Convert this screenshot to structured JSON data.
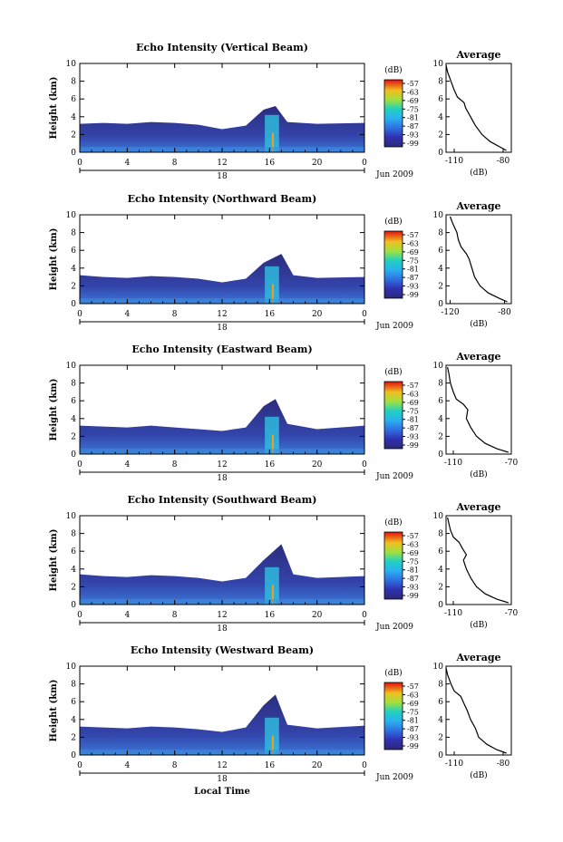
{
  "chart_data": [
    {
      "type": "heatmap",
      "title": "Echo Intensity (Vertical Beam)",
      "ylabel": "Height (km)",
      "xlim": [
        0,
        24
      ],
      "ylim": [
        0,
        10
      ],
      "xticks": [
        "0",
        "4",
        "8",
        "12",
        "16",
        "20",
        "0"
      ],
      "yticks": [
        "0",
        "2",
        "4",
        "6",
        "8",
        "10"
      ],
      "date_day": "18",
      "date_label": "Jun 2009",
      "colorbar": {
        "unit": "(dB)",
        "ticks": [
          "-57",
          "-63",
          "-69",
          "-75",
          "-81",
          "-87",
          "-93",
          "-99"
        ]
      },
      "echo_top_profile_km": [
        [
          0,
          3.2
        ],
        [
          2,
          3.3
        ],
        [
          4,
          3.2
        ],
        [
          6,
          3.4
        ],
        [
          8,
          3.3
        ],
        [
          10,
          3.1
        ],
        [
          12,
          2.6
        ],
        [
          14,
          3.0
        ],
        [
          15.5,
          4.8
        ],
        [
          16.5,
          5.2
        ],
        [
          17.5,
          3.4
        ],
        [
          20,
          3.2
        ],
        [
          24,
          3.3
        ]
      ],
      "average": {
        "title": "Average",
        "xlabel": "(dB)",
        "xticks": [
          "-110",
          "-80"
        ],
        "xlim": [
          -115,
          -75
        ],
        "yticks": [
          "0",
          "2",
          "4",
          "6",
          "8",
          "10"
        ],
        "profile": [
          [
            -78,
            0.2
          ],
          [
            -82,
            0.6
          ],
          [
            -88,
            1.2
          ],
          [
            -93,
            2
          ],
          [
            -97,
            3
          ],
          [
            -100,
            4
          ],
          [
            -103,
            5
          ],
          [
            -104,
            5.6
          ],
          [
            -108,
            6.2
          ],
          [
            -110,
            7
          ],
          [
            -112,
            8
          ],
          [
            -114,
            9
          ],
          [
            -115,
            9.8
          ]
        ]
      }
    },
    {
      "type": "heatmap",
      "title": "Echo Intensity (Northward Beam)",
      "ylabel": "Height (km)",
      "xlim": [
        0,
        24
      ],
      "ylim": [
        0,
        10
      ],
      "xticks": [
        "0",
        "4",
        "8",
        "12",
        "16",
        "20",
        "0"
      ],
      "yticks": [
        "0",
        "2",
        "4",
        "6",
        "8",
        "10"
      ],
      "date_day": "18",
      "date_label": "Jun 2009",
      "colorbar": {
        "unit": "(dB)",
        "ticks": [
          "-57",
          "-63",
          "-69",
          "-75",
          "-81",
          "-87",
          "-93",
          "-99"
        ]
      },
      "echo_top_profile_km": [
        [
          0,
          3.2
        ],
        [
          2,
          3.0
        ],
        [
          4,
          2.9
        ],
        [
          6,
          3.1
        ],
        [
          8,
          3.0
        ],
        [
          10,
          2.8
        ],
        [
          12,
          2.4
        ],
        [
          14,
          2.8
        ],
        [
          15.5,
          4.6
        ],
        [
          17,
          5.6
        ],
        [
          18,
          3.2
        ],
        [
          20,
          2.9
        ],
        [
          24,
          3.0
        ]
      ],
      "average": {
        "title": "Average",
        "xlabel": "(dB)",
        "xticks": [
          "-120",
          "-80"
        ],
        "xlim": [
          -123,
          -75
        ],
        "yticks": [
          "0",
          "2",
          "4",
          "6",
          "8",
          "10"
        ],
        "profile": [
          [
            -78,
            0.2
          ],
          [
            -84,
            0.6
          ],
          [
            -92,
            1.2
          ],
          [
            -98,
            2
          ],
          [
            -102,
            3
          ],
          [
            -104,
            4
          ],
          [
            -106,
            5
          ],
          [
            -108,
            5.6
          ],
          [
            -112,
            6.4
          ],
          [
            -114,
            7.2
          ],
          [
            -115,
            8
          ],
          [
            -118,
            9
          ],
          [
            -120,
            9.8
          ]
        ]
      }
    },
    {
      "type": "heatmap",
      "title": "Echo Intensity (Eastward Beam)",
      "ylabel": "Height (km)",
      "xlim": [
        0,
        24
      ],
      "ylim": [
        0,
        10
      ],
      "xticks": [
        "0",
        "4",
        "8",
        "12",
        "16",
        "20",
        "0"
      ],
      "yticks": [
        "0",
        "2",
        "4",
        "6",
        "8",
        "10"
      ],
      "date_day": "18",
      "date_label": "Jun 2009",
      "colorbar": {
        "unit": "(dB)",
        "ticks": [
          "-57",
          "-63",
          "-69",
          "-75",
          "-81",
          "-87",
          "-93",
          "-99"
        ]
      },
      "echo_top_profile_km": [
        [
          0,
          3.2
        ],
        [
          2,
          3.1
        ],
        [
          4,
          3.0
        ],
        [
          6,
          3.2
        ],
        [
          8,
          3.0
        ],
        [
          10,
          2.8
        ],
        [
          12,
          2.6
        ],
        [
          14,
          3.0
        ],
        [
          15.5,
          5.4
        ],
        [
          16.5,
          6.2
        ],
        [
          17.5,
          3.4
        ],
        [
          20,
          2.8
        ],
        [
          24,
          3.2
        ]
      ],
      "average": {
        "title": "Average",
        "xlabel": "(dB)",
        "xticks": [
          "-110",
          "-70"
        ],
        "xlim": [
          -115,
          -70
        ],
        "yticks": [
          "0",
          "2",
          "4",
          "6",
          "8",
          "10"
        ],
        "profile": [
          [
            -72,
            0.2
          ],
          [
            -80,
            0.6
          ],
          [
            -88,
            1.2
          ],
          [
            -94,
            2
          ],
          [
            -98,
            3
          ],
          [
            -101,
            4
          ],
          [
            -100,
            5
          ],
          [
            -103,
            5.6
          ],
          [
            -108,
            6.2
          ],
          [
            -110,
            7
          ],
          [
            -112,
            8
          ],
          [
            -113,
            9
          ],
          [
            -114,
            9.8
          ]
        ]
      }
    },
    {
      "type": "heatmap",
      "title": "Echo Intensity (Southward Beam)",
      "ylabel": "Height (km)",
      "xlim": [
        0,
        24
      ],
      "ylim": [
        0,
        10
      ],
      "xticks": [
        "0",
        "4",
        "8",
        "12",
        "16",
        "20",
        "0"
      ],
      "yticks": [
        "0",
        "2",
        "4",
        "6",
        "8",
        "10"
      ],
      "date_day": "18",
      "date_label": "Jun 2009",
      "colorbar": {
        "unit": "(dB)",
        "ticks": [
          "-57",
          "-63",
          "-69",
          "-75",
          "-81",
          "-87",
          "-93",
          "-99"
        ]
      },
      "echo_top_profile_km": [
        [
          0,
          3.4
        ],
        [
          2,
          3.2
        ],
        [
          4,
          3.1
        ],
        [
          6,
          3.3
        ],
        [
          8,
          3.2
        ],
        [
          10,
          3.0
        ],
        [
          12,
          2.6
        ],
        [
          14,
          3.0
        ],
        [
          15.5,
          5.0
        ],
        [
          17,
          6.8
        ],
        [
          18,
          3.4
        ],
        [
          20,
          3.0
        ],
        [
          24,
          3.2
        ]
      ],
      "average": {
        "title": "Average",
        "xlabel": "(dB)",
        "xticks": [
          "-110",
          "-70"
        ],
        "xlim": [
          -115,
          -70
        ],
        "yticks": [
          "0",
          "2",
          "4",
          "6",
          "8",
          "10"
        ],
        "profile": [
          [
            -72,
            0.2
          ],
          [
            -80,
            0.6
          ],
          [
            -88,
            1.2
          ],
          [
            -94,
            2
          ],
          [
            -98,
            3
          ],
          [
            -101,
            4
          ],
          [
            -103,
            5
          ],
          [
            -101,
            5.6
          ],
          [
            -104,
            6.4
          ],
          [
            -106,
            7
          ],
          [
            -110,
            7.6
          ],
          [
            -112,
            8.4
          ],
          [
            -114,
            9.8
          ]
        ]
      }
    },
    {
      "type": "heatmap",
      "title": "Echo Intensity (Westward Beam)",
      "ylabel": "Height (km)",
      "xlabel": "Local Time",
      "xlim": [
        0,
        24
      ],
      "ylim": [
        0,
        10
      ],
      "xticks": [
        "0",
        "4",
        "8",
        "12",
        "16",
        "20",
        "0"
      ],
      "yticks": [
        "0",
        "2",
        "4",
        "6",
        "8",
        "10"
      ],
      "date_day": "18",
      "date_label": "Jun 2009",
      "colorbar": {
        "unit": "(dB)",
        "ticks": [
          "-57",
          "-63",
          "-69",
          "-75",
          "-81",
          "-87",
          "-93",
          "-99"
        ]
      },
      "echo_top_profile_km": [
        [
          0,
          3.2
        ],
        [
          2,
          3.1
        ],
        [
          4,
          3.0
        ],
        [
          6,
          3.2
        ],
        [
          8,
          3.1
        ],
        [
          10,
          2.9
        ],
        [
          12,
          2.6
        ],
        [
          14,
          3.1
        ],
        [
          15.5,
          5.6
        ],
        [
          16.5,
          6.8
        ],
        [
          17.5,
          3.4
        ],
        [
          20,
          3.0
        ],
        [
          24,
          3.3
        ]
      ],
      "average": {
        "title": "Average",
        "xlabel": "(dB)",
        "xticks": [
          "-110",
          "-80"
        ],
        "xlim": [
          -115,
          -75
        ],
        "yticks": [
          "0",
          "2",
          "4",
          "6",
          "8",
          "10"
        ],
        "profile": [
          [
            -78,
            0.2
          ],
          [
            -84,
            0.6
          ],
          [
            -90,
            1.2
          ],
          [
            -95,
            2
          ],
          [
            -97,
            3
          ],
          [
            -100,
            4
          ],
          [
            -102,
            5
          ],
          [
            -104,
            5.8
          ],
          [
            -106,
            6.6
          ],
          [
            -110,
            7.2
          ],
          [
            -112,
            8
          ],
          [
            -114,
            9
          ],
          [
            -115,
            9.8
          ]
        ]
      }
    }
  ]
}
